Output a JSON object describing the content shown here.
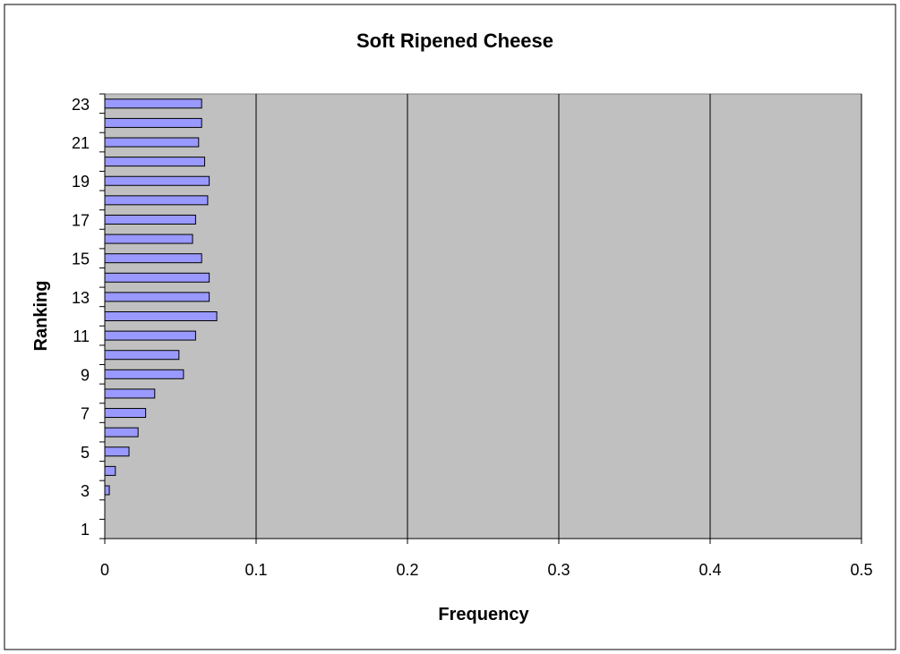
{
  "chart_data": {
    "type": "bar",
    "orientation": "horizontal",
    "title": "Soft Ripened Cheese",
    "xlabel": "Frequency",
    "ylabel": "Ranking",
    "xlim": [
      0,
      0.5
    ],
    "x_ticks": [
      0,
      0.1,
      0.2,
      0.3,
      0.4,
      0.5
    ],
    "x_tick_labels": [
      "0",
      "0.1",
      "0.2",
      "0.3",
      "0.4",
      "0.5"
    ],
    "categories": [
      1,
      2,
      3,
      4,
      5,
      6,
      7,
      8,
      9,
      10,
      11,
      12,
      13,
      14,
      15,
      16,
      17,
      18,
      19,
      20,
      21,
      22,
      23
    ],
    "y_tick_labels": [
      "1",
      "3",
      "5",
      "7",
      "9",
      "11",
      "13",
      "15",
      "17",
      "19",
      "21",
      "23"
    ],
    "values": [
      0,
      0,
      0.003,
      0.007,
      0.016,
      0.022,
      0.027,
      0.033,
      0.052,
      0.049,
      0.06,
      0.074,
      0.069,
      0.069,
      0.064,
      0.058,
      0.06,
      0.068,
      0.069,
      0.066,
      0.062,
      0.064,
      0.064
    ],
    "grid": {
      "x_major": true,
      "y_major": false
    },
    "legend": "none",
    "colors": {
      "bar_fill": "#9999ff",
      "bar_stroke": "#000000",
      "plot_background": "#c0c0c0",
      "page_background": "#ffffff"
    }
  }
}
